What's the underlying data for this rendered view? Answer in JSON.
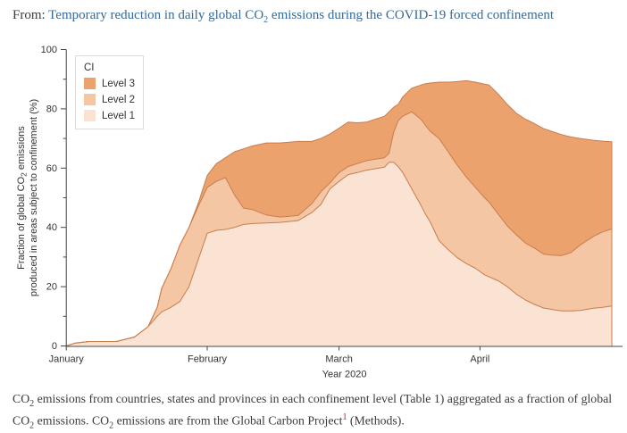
{
  "header": {
    "prefix_label": "From:",
    "article_link": {
      "segments": [
        {
          "t": "Temporary reduction in daily global CO"
        },
        {
          "sub": "2"
        },
        {
          "t": " emissions during the COVID-19 forced confinement"
        }
      ],
      "color": "#36699c"
    }
  },
  "chart_data": {
    "type": "area",
    "stacked": true,
    "title": "",
    "xlabel": "Year 2020",
    "ylabel_lines_segments": [
      [
        {
          "t": "Fraction of global CO"
        },
        {
          "sub": "2"
        },
        {
          "t": " emissions"
        }
      ],
      [
        {
          "t": "produced in areas subject to confinement (%)"
        }
      ]
    ],
    "ylim": [
      0,
      100
    ],
    "y_ticks_major": [
      0,
      20,
      40,
      60,
      80,
      100
    ],
    "y_ticks_minor": [
      10,
      30,
      50,
      70,
      90
    ],
    "x_ticks": [
      {
        "day": 1,
        "label": "January"
      },
      {
        "day": 32,
        "label": "February"
      },
      {
        "day": 61,
        "label": "March"
      },
      {
        "day": 92,
        "label": "April"
      }
    ],
    "x_range_days": [
      1,
      121
    ],
    "grid": false,
    "legend": {
      "title": "CI",
      "position": "upper-left",
      "items": [
        {
          "label": "Level 3",
          "color": "#eca26d"
        },
        {
          "label": "Level 2",
          "color": "#f5c6a4"
        },
        {
          "label": "Level 1",
          "color": "#fbe3d4"
        }
      ]
    },
    "stroke_color": "#c87d4e",
    "axis_color": "#444444",
    "series_cumulative": {
      "note": "cumulative stacked percent boundaries; days are day-of-year 2020 (1 = Jan 1)",
      "days": [
        1,
        3,
        6,
        12,
        16,
        19,
        21,
        22,
        24,
        26,
        28,
        30,
        32,
        34,
        36,
        38,
        40,
        42,
        45,
        48,
        52,
        55,
        57,
        59,
        61,
        63,
        65,
        67,
        69,
        71,
        72,
        73,
        74,
        75,
        77,
        79,
        80,
        81,
        83,
        85,
        87,
        89,
        91,
        93,
        94,
        96,
        98,
        100,
        102,
        104,
        106,
        108,
        110,
        112,
        114,
        117,
        119,
        121
      ],
      "level1_top": [
        0,
        1,
        1.5,
        1.5,
        3,
        6.5,
        10,
        11.5,
        13,
        15,
        20,
        29,
        38,
        39,
        39.3,
        40,
        41,
        41.3,
        41.5,
        41.7,
        42.3,
        45,
        47.7,
        53,
        55.5,
        57.8,
        58.5,
        59.3,
        59.8,
        60.3,
        62,
        62,
        60.5,
        58.5,
        53,
        47.5,
        44.5,
        42,
        35.5,
        32.5,
        29.8,
        27.8,
        26.2,
        24,
        23.3,
        22,
        20,
        17.5,
        15.5,
        14,
        12.8,
        12.3,
        11.8,
        11.8,
        12,
        12.7,
        13,
        13.5
      ],
      "level2_top": [
        0,
        1,
        1.5,
        1.5,
        3,
        6.5,
        13,
        19.5,
        26,
        34,
        40,
        47,
        53.5,
        55.5,
        56.8,
        51,
        46.5,
        46,
        44.2,
        43.5,
        44,
        48,
        52,
        55,
        58.5,
        60.5,
        61.5,
        62.5,
        63,
        63.5,
        65,
        72,
        76,
        77.5,
        79,
        76.5,
        74.5,
        72.5,
        70,
        65.5,
        61,
        57,
        53.5,
        50,
        48.5,
        44.5,
        40.5,
        37.5,
        34.7,
        33,
        31,
        30.6,
        30.5,
        31.5,
        34,
        37,
        38.5,
        39.5
      ],
      "level3_top": [
        0,
        1,
        1.5,
        1.5,
        3,
        6.5,
        13,
        19.5,
        26,
        34,
        40,
        48,
        57.5,
        61.5,
        63.5,
        65.5,
        66.5,
        67.5,
        68.5,
        68.5,
        69,
        69,
        70,
        71.5,
        73.5,
        75.5,
        75.3,
        75.5,
        76.5,
        77.5,
        79,
        80.5,
        81.5,
        84,
        87,
        88,
        88.5,
        88.7,
        89,
        89,
        89.2,
        89.5,
        89,
        88.3,
        88,
        85,
        81.5,
        78.5,
        76.5,
        75,
        73.3,
        72.3,
        71.3,
        70.5,
        70,
        69.4,
        69.1,
        68.9
      ]
    }
  },
  "caption": {
    "segments": [
      {
        "t": "CO"
      },
      {
        "sub": "2"
      },
      {
        "t": " emissions from countries, states and provinces in each confinement level (Table 1) aggregated as a fraction of global CO"
      },
      {
        "sub": "2"
      },
      {
        "t": " emissions. CO"
      },
      {
        "sub": "2"
      },
      {
        "t": " emissions are from the Global Carbon Project"
      },
      {
        "sup": "1"
      },
      {
        "t": " (Methods)."
      }
    ],
    "ref_color": "#8e2f44"
  }
}
